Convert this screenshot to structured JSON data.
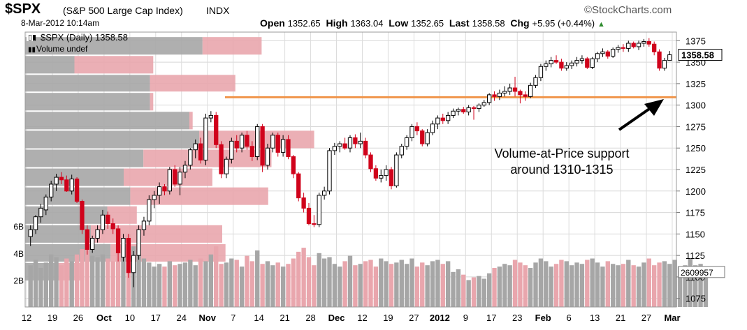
{
  "header": {
    "symbol": "$SPX",
    "name": "(S&P 500 Large Cap Index)",
    "exchange": "INDX",
    "date": "8-Mar-2012 10:14am",
    "open_label": "Open",
    "open": "1352.65",
    "high_label": "High",
    "high": "1363.04",
    "low_label": "Low",
    "low": "1352.65",
    "last_label": "Last",
    "last": "1358.58",
    "chg_label": "Chg",
    "chg": "+5.95 (+0.44%)",
    "brand": "©StockCharts.com"
  },
  "legend": {
    "price_series": "$SPX (Daily) 1358.58",
    "volume_series": "Volume undef"
  },
  "annotation": {
    "line1": "Volume-at-Price support",
    "line2": "around 1310-1315"
  },
  "colors": {
    "up": "#000000",
    "down": "#d0021b",
    "vol_gray": "#a6a6a6",
    "vol_red": "#e9a6ad",
    "support_line": "#f0954a",
    "brand_gray": "#555555"
  },
  "chart_data": {
    "type": "candlestick",
    "price_axis": {
      "ylim": [
        1065,
        1385
      ],
      "ticks": [
        1075,
        1100,
        1125,
        1150,
        1175,
        1200,
        1225,
        1250,
        1275,
        1300,
        1325,
        1350,
        1375
      ],
      "last_price_label": "1358.58"
    },
    "volume_axis": {
      "ticks": [
        "2B",
        "4B",
        "6B"
      ],
      "tick_values": [
        2,
        4,
        6
      ],
      "last_volume_label": "2609957"
    },
    "x_tick_labels": [
      "12",
      "19",
      "26",
      "Oct",
      "10",
      "17",
      "24",
      "Nov",
      "7",
      "14",
      "21",
      "28",
      "Dec",
      "12",
      "19",
      "27",
      "2012",
      "9",
      "17",
      "23",
      "Feb",
      "6",
      "13",
      "21",
      "27",
      "Mar"
    ],
    "x_tick_bold": [
      "Oct",
      "Nov",
      "Dec",
      "2012",
      "Feb",
      "Mar"
    ],
    "support_level": 1310,
    "volume_at_price": [
      {
        "price_low": 1358,
        "price_high": 1380,
        "up": 0.54,
        "down": 0.18
      },
      {
        "price_low": 1336,
        "price_high": 1358,
        "up": 0.15,
        "down": 0.24
      },
      {
        "price_low": 1315,
        "price_high": 1336,
        "up": 0.38,
        "down": 0.26
      },
      {
        "price_low": 1293,
        "price_high": 1315,
        "up": 0.38,
        "down": 0.01
      },
      {
        "price_low": 1271,
        "price_high": 1293,
        "up": 0.5,
        "down": 0.01
      },
      {
        "price_low": 1249,
        "price_high": 1271,
        "up": 0.53,
        "down": 0.35
      },
      {
        "price_low": 1227,
        "price_high": 1249,
        "up": 0.36,
        "down": 0.39
      },
      {
        "price_low": 1205,
        "price_high": 1227,
        "up": 0.3,
        "down": 0.27
      },
      {
        "price_low": 1183,
        "price_high": 1205,
        "up": 0.32,
        "down": 0.42
      },
      {
        "price_low": 1161,
        "price_high": 1183,
        "up": 0.25,
        "down": 0.09
      },
      {
        "price_low": 1139,
        "price_high": 1161,
        "up": 0.2,
        "down": 0.4
      },
      {
        "price_low": 1117,
        "price_high": 1139,
        "up": 0.26,
        "down": 0.35
      },
      {
        "price_low": 1095,
        "price_high": 1117,
        "up": 0.09,
        "down": 0.09
      }
    ],
    "candles": [
      {
        "o": 1147,
        "h": 1160,
        "l": 1136,
        "c": 1155
      },
      {
        "o": 1155,
        "h": 1172,
        "l": 1150,
        "c": 1170
      },
      {
        "o": 1170,
        "h": 1185,
        "l": 1163,
        "c": 1180
      },
      {
        "o": 1178,
        "h": 1196,
        "l": 1172,
        "c": 1193
      },
      {
        "o": 1193,
        "h": 1212,
        "l": 1188,
        "c": 1208
      },
      {
        "o": 1208,
        "h": 1220,
        "l": 1200,
        "c": 1216
      },
      {
        "o": 1216,
        "h": 1222,
        "l": 1208,
        "c": 1213
      },
      {
        "o": 1213,
        "h": 1218,
        "l": 1199,
        "c": 1200
      },
      {
        "o": 1200,
        "h": 1219,
        "l": 1196,
        "c": 1214
      },
      {
        "o": 1214,
        "h": 1216,
        "l": 1186,
        "c": 1188
      },
      {
        "o": 1188,
        "h": 1190,
        "l": 1150,
        "c": 1155
      },
      {
        "o": 1155,
        "h": 1160,
        "l": 1126,
        "c": 1132
      },
      {
        "o": 1132,
        "h": 1148,
        "l": 1128,
        "c": 1145
      },
      {
        "o": 1145,
        "h": 1160,
        "l": 1140,
        "c": 1155
      },
      {
        "o": 1155,
        "h": 1178,
        "l": 1150,
        "c": 1172
      },
      {
        "o": 1172,
        "h": 1176,
        "l": 1156,
        "c": 1162
      },
      {
        "o": 1162,
        "h": 1168,
        "l": 1150,
        "c": 1156
      },
      {
        "o": 1156,
        "h": 1160,
        "l": 1118,
        "c": 1128
      },
      {
        "o": 1123,
        "h": 1150,
        "l": 1118,
        "c": 1145
      },
      {
        "o": 1145,
        "h": 1150,
        "l": 1099,
        "c": 1105
      },
      {
        "o": 1105,
        "h": 1130,
        "l": 1088,
        "c": 1125
      },
      {
        "o": 1125,
        "h": 1160,
        "l": 1120,
        "c": 1155
      },
      {
        "o": 1155,
        "h": 1170,
        "l": 1148,
        "c": 1165
      },
      {
        "o": 1165,
        "h": 1195,
        "l": 1160,
        "c": 1190
      },
      {
        "o": 1190,
        "h": 1200,
        "l": 1180,
        "c": 1195
      },
      {
        "o": 1195,
        "h": 1210,
        "l": 1185,
        "c": 1205
      },
      {
        "o": 1205,
        "h": 1208,
        "l": 1195,
        "c": 1200
      },
      {
        "o": 1200,
        "h": 1228,
        "l": 1196,
        "c": 1225
      },
      {
        "o": 1225,
        "h": 1230,
        "l": 1205,
        "c": 1208
      },
      {
        "o": 1208,
        "h": 1228,
        "l": 1195,
        "c": 1222
      },
      {
        "o": 1222,
        "h": 1235,
        "l": 1215,
        "c": 1230
      },
      {
        "o": 1230,
        "h": 1250,
        "l": 1225,
        "c": 1248
      },
      {
        "o": 1248,
        "h": 1260,
        "l": 1238,
        "c": 1255
      },
      {
        "o": 1255,
        "h": 1262,
        "l": 1232,
        "c": 1236
      },
      {
        "o": 1236,
        "h": 1290,
        "l": 1230,
        "c": 1285
      },
      {
        "o": 1285,
        "h": 1293,
        "l": 1280,
        "c": 1288
      },
      {
        "o": 1288,
        "h": 1292,
        "l": 1250,
        "c": 1254
      },
      {
        "o": 1254,
        "h": 1258,
        "l": 1215,
        "c": 1220
      },
      {
        "o": 1220,
        "h": 1240,
        "l": 1215,
        "c": 1237
      },
      {
        "o": 1237,
        "h": 1262,
        "l": 1232,
        "c": 1258
      },
      {
        "o": 1258,
        "h": 1265,
        "l": 1245,
        "c": 1250
      },
      {
        "o": 1250,
        "h": 1268,
        "l": 1245,
        "c": 1265
      },
      {
        "o": 1265,
        "h": 1270,
        "l": 1248,
        "c": 1252
      },
      {
        "o": 1252,
        "h": 1258,
        "l": 1235,
        "c": 1240
      },
      {
        "o": 1240,
        "h": 1278,
        "l": 1236,
        "c": 1275
      },
      {
        "o": 1275,
        "h": 1278,
        "l": 1222,
        "c": 1230
      },
      {
        "o": 1230,
        "h": 1255,
        "l": 1225,
        "c": 1250
      },
      {
        "o": 1250,
        "h": 1268,
        "l": 1245,
        "c": 1265
      },
      {
        "o": 1265,
        "h": 1268,
        "l": 1240,
        "c": 1245
      },
      {
        "o": 1245,
        "h": 1265,
        "l": 1240,
        "c": 1260
      },
      {
        "o": 1260,
        "h": 1265,
        "l": 1237,
        "c": 1240
      },
      {
        "o": 1240,
        "h": 1242,
        "l": 1215,
        "c": 1220
      },
      {
        "o": 1220,
        "h": 1222,
        "l": 1188,
        "c": 1192
      },
      {
        "o": 1192,
        "h": 1198,
        "l": 1175,
        "c": 1180
      },
      {
        "o": 1180,
        "h": 1186,
        "l": 1160,
        "c": 1162
      },
      {
        "o": 1162,
        "h": 1172,
        "l": 1158,
        "c": 1161
      },
      {
        "o": 1161,
        "h": 1198,
        "l": 1158,
        "c": 1195
      },
      {
        "o": 1195,
        "h": 1205,
        "l": 1190,
        "c": 1200
      },
      {
        "o": 1200,
        "h": 1250,
        "l": 1196,
        "c": 1247
      },
      {
        "o": 1247,
        "h": 1256,
        "l": 1242,
        "c": 1252
      },
      {
        "o": 1252,
        "h": 1258,
        "l": 1245,
        "c": 1255
      },
      {
        "o": 1255,
        "h": 1262,
        "l": 1248,
        "c": 1250
      },
      {
        "o": 1250,
        "h": 1265,
        "l": 1245,
        "c": 1262
      },
      {
        "o": 1262,
        "h": 1266,
        "l": 1250,
        "c": 1255
      },
      {
        "o": 1255,
        "h": 1268,
        "l": 1250,
        "c": 1258
      },
      {
        "o": 1258,
        "h": 1262,
        "l": 1238,
        "c": 1242
      },
      {
        "o": 1242,
        "h": 1245,
        "l": 1222,
        "c": 1226
      },
      {
        "o": 1226,
        "h": 1230,
        "l": 1212,
        "c": 1215
      },
      {
        "o": 1215,
        "h": 1225,
        "l": 1210,
        "c": 1218
      },
      {
        "o": 1218,
        "h": 1230,
        "l": 1212,
        "c": 1225
      },
      {
        "o": 1225,
        "h": 1228,
        "l": 1202,
        "c": 1206
      },
      {
        "o": 1206,
        "h": 1245,
        "l": 1204,
        "c": 1242
      },
      {
        "o": 1242,
        "h": 1255,
        "l": 1238,
        "c": 1252
      },
      {
        "o": 1252,
        "h": 1265,
        "l": 1248,
        "c": 1262
      },
      {
        "o": 1262,
        "h": 1278,
        "l": 1258,
        "c": 1275
      },
      {
        "o": 1275,
        "h": 1280,
        "l": 1265,
        "c": 1270
      },
      {
        "o": 1270,
        "h": 1272,
        "l": 1252,
        "c": 1255
      },
      {
        "o": 1255,
        "h": 1272,
        "l": 1252,
        "c": 1268
      },
      {
        "o": 1268,
        "h": 1282,
        "l": 1265,
        "c": 1278
      },
      {
        "o": 1278,
        "h": 1288,
        "l": 1272,
        "c": 1285
      },
      {
        "o": 1285,
        "h": 1290,
        "l": 1278,
        "c": 1282
      },
      {
        "o": 1282,
        "h": 1292,
        "l": 1278,
        "c": 1288
      },
      {
        "o": 1288,
        "h": 1296,
        "l": 1285,
        "c": 1293
      },
      {
        "o": 1293,
        "h": 1297,
        "l": 1288,
        "c": 1295
      },
      {
        "o": 1295,
        "h": 1298,
        "l": 1290,
        "c": 1292
      },
      {
        "o": 1292,
        "h": 1300,
        "l": 1288,
        "c": 1297
      },
      {
        "o": 1297,
        "h": 1299,
        "l": 1283,
        "c": 1296
      },
      {
        "o": 1296,
        "h": 1302,
        "l": 1292,
        "c": 1300
      },
      {
        "o": 1300,
        "h": 1306,
        "l": 1298,
        "c": 1303
      },
      {
        "o": 1303,
        "h": 1314,
        "l": 1300,
        "c": 1312
      },
      {
        "o": 1312,
        "h": 1316,
        "l": 1305,
        "c": 1310
      },
      {
        "o": 1310,
        "h": 1318,
        "l": 1306,
        "c": 1314
      },
      {
        "o": 1314,
        "h": 1322,
        "l": 1310,
        "c": 1316
      },
      {
        "o": 1316,
        "h": 1325,
        "l": 1312,
        "c": 1320
      },
      {
        "o": 1320,
        "h": 1333,
        "l": 1310,
        "c": 1316
      },
      {
        "o": 1316,
        "h": 1318,
        "l": 1302,
        "c": 1312
      },
      {
        "o": 1312,
        "h": 1316,
        "l": 1305,
        "c": 1310
      },
      {
        "o": 1310,
        "h": 1326,
        "l": 1308,
        "c": 1323
      },
      {
        "o": 1323,
        "h": 1335,
        "l": 1320,
        "c": 1332
      },
      {
        "o": 1332,
        "h": 1348,
        "l": 1328,
        "c": 1345
      },
      {
        "o": 1345,
        "h": 1352,
        "l": 1340,
        "c": 1348
      },
      {
        "o": 1348,
        "h": 1356,
        "l": 1344,
        "c": 1352
      },
      {
        "o": 1352,
        "h": 1358,
        "l": 1348,
        "c": 1350
      },
      {
        "o": 1350,
        "h": 1354,
        "l": 1340,
        "c": 1343
      },
      {
        "o": 1343,
        "h": 1350,
        "l": 1340,
        "c": 1346
      },
      {
        "o": 1346,
        "h": 1352,
        "l": 1342,
        "c": 1349
      },
      {
        "o": 1349,
        "h": 1356,
        "l": 1345,
        "c": 1352
      },
      {
        "o": 1352,
        "h": 1358,
        "l": 1348,
        "c": 1354
      },
      {
        "o": 1354,
        "h": 1356,
        "l": 1342,
        "c": 1344
      },
      {
        "o": 1344,
        "h": 1356,
        "l": 1342,
        "c": 1354
      },
      {
        "o": 1354,
        "h": 1362,
        "l": 1350,
        "c": 1360
      },
      {
        "o": 1360,
        "h": 1366,
        "l": 1356,
        "c": 1362
      },
      {
        "o": 1362,
        "h": 1364,
        "l": 1354,
        "c": 1357
      },
      {
        "o": 1357,
        "h": 1367,
        "l": 1355,
        "c": 1365
      },
      {
        "o": 1365,
        "h": 1370,
        "l": 1361,
        "c": 1367
      },
      {
        "o": 1367,
        "h": 1371,
        "l": 1362,
        "c": 1366
      },
      {
        "o": 1366,
        "h": 1375,
        "l": 1362,
        "c": 1372
      },
      {
        "o": 1372,
        "h": 1374,
        "l": 1366,
        "c": 1368
      },
      {
        "o": 1368,
        "h": 1375,
        "l": 1364,
        "c": 1372
      },
      {
        "o": 1372,
        "h": 1377,
        "l": 1368,
        "c": 1374
      },
      {
        "o": 1374,
        "h": 1378,
        "l": 1368,
        "c": 1371
      },
      {
        "o": 1371,
        "h": 1374,
        "l": 1358,
        "c": 1362
      },
      {
        "o": 1362,
        "h": 1365,
        "l": 1340,
        "c": 1343
      },
      {
        "o": 1343,
        "h": 1355,
        "l": 1340,
        "c": 1352
      },
      {
        "o": 1352,
        "h": 1363,
        "l": 1352,
        "c": 1358.58
      }
    ],
    "volume": [
      3.1,
      3.5,
      2.9,
      3.3,
      3.9,
      3.7,
      3.1,
      3.6,
      3.4,
      3.9,
      4.3,
      4.6,
      3.8,
      3.7,
      3.9,
      3.6,
      3.4,
      4.0,
      3.8,
      5.4,
      4.5,
      3.9,
      3.6,
      3.3,
      3.0,
      3.2,
      3.0,
      3.4,
      3.1,
      3.2,
      3.3,
      3.5,
      3.1,
      3.6,
      3.4,
      3.9,
      4.5,
      3.2,
      3.3,
      3.6,
      3.5,
      3.0,
      3.8,
      3.4,
      4.2,
      3.2,
      3.4,
      3.1,
      3.3,
      3.0,
      3.2,
      3.6,
      4.1,
      4.4,
      3.7,
      3.1,
      4.0,
      3.6,
      3.7,
      3.2,
      3.0,
      3.4,
      3.8,
      3.1,
      3.2,
      3.4,
      3.5,
      3.0,
      3.6,
      3.4,
      3.2,
      3.3,
      3.5,
      3.2,
      3.6,
      3.0,
      3.3,
      3.1,
      3.4,
      3.5,
      3.2,
      3.4,
      2.6,
      2.8,
      2.4,
      2.0,
      2.2,
      2.3,
      2.1,
      2.5,
      2.9,
      3.0,
      3.2,
      3.1,
      3.5,
      3.3,
      3.1,
      2.9,
      3.3,
      3.6,
      3.4,
      3.0,
      3.2,
      3.5,
      3.4,
      3.1,
      3.3,
      3.2,
      3.5,
      3.6,
      3.3,
      3.0,
      3.4,
      3.2,
      3.1,
      3.2,
      3.5,
      3.1,
      3.0,
      3.3,
      3.6,
      3.1,
      3.3,
      3.4,
      3.2,
      3.5,
      3.0,
      3.1,
      3.6,
      3.1,
      3.2,
      2.6
    ]
  }
}
